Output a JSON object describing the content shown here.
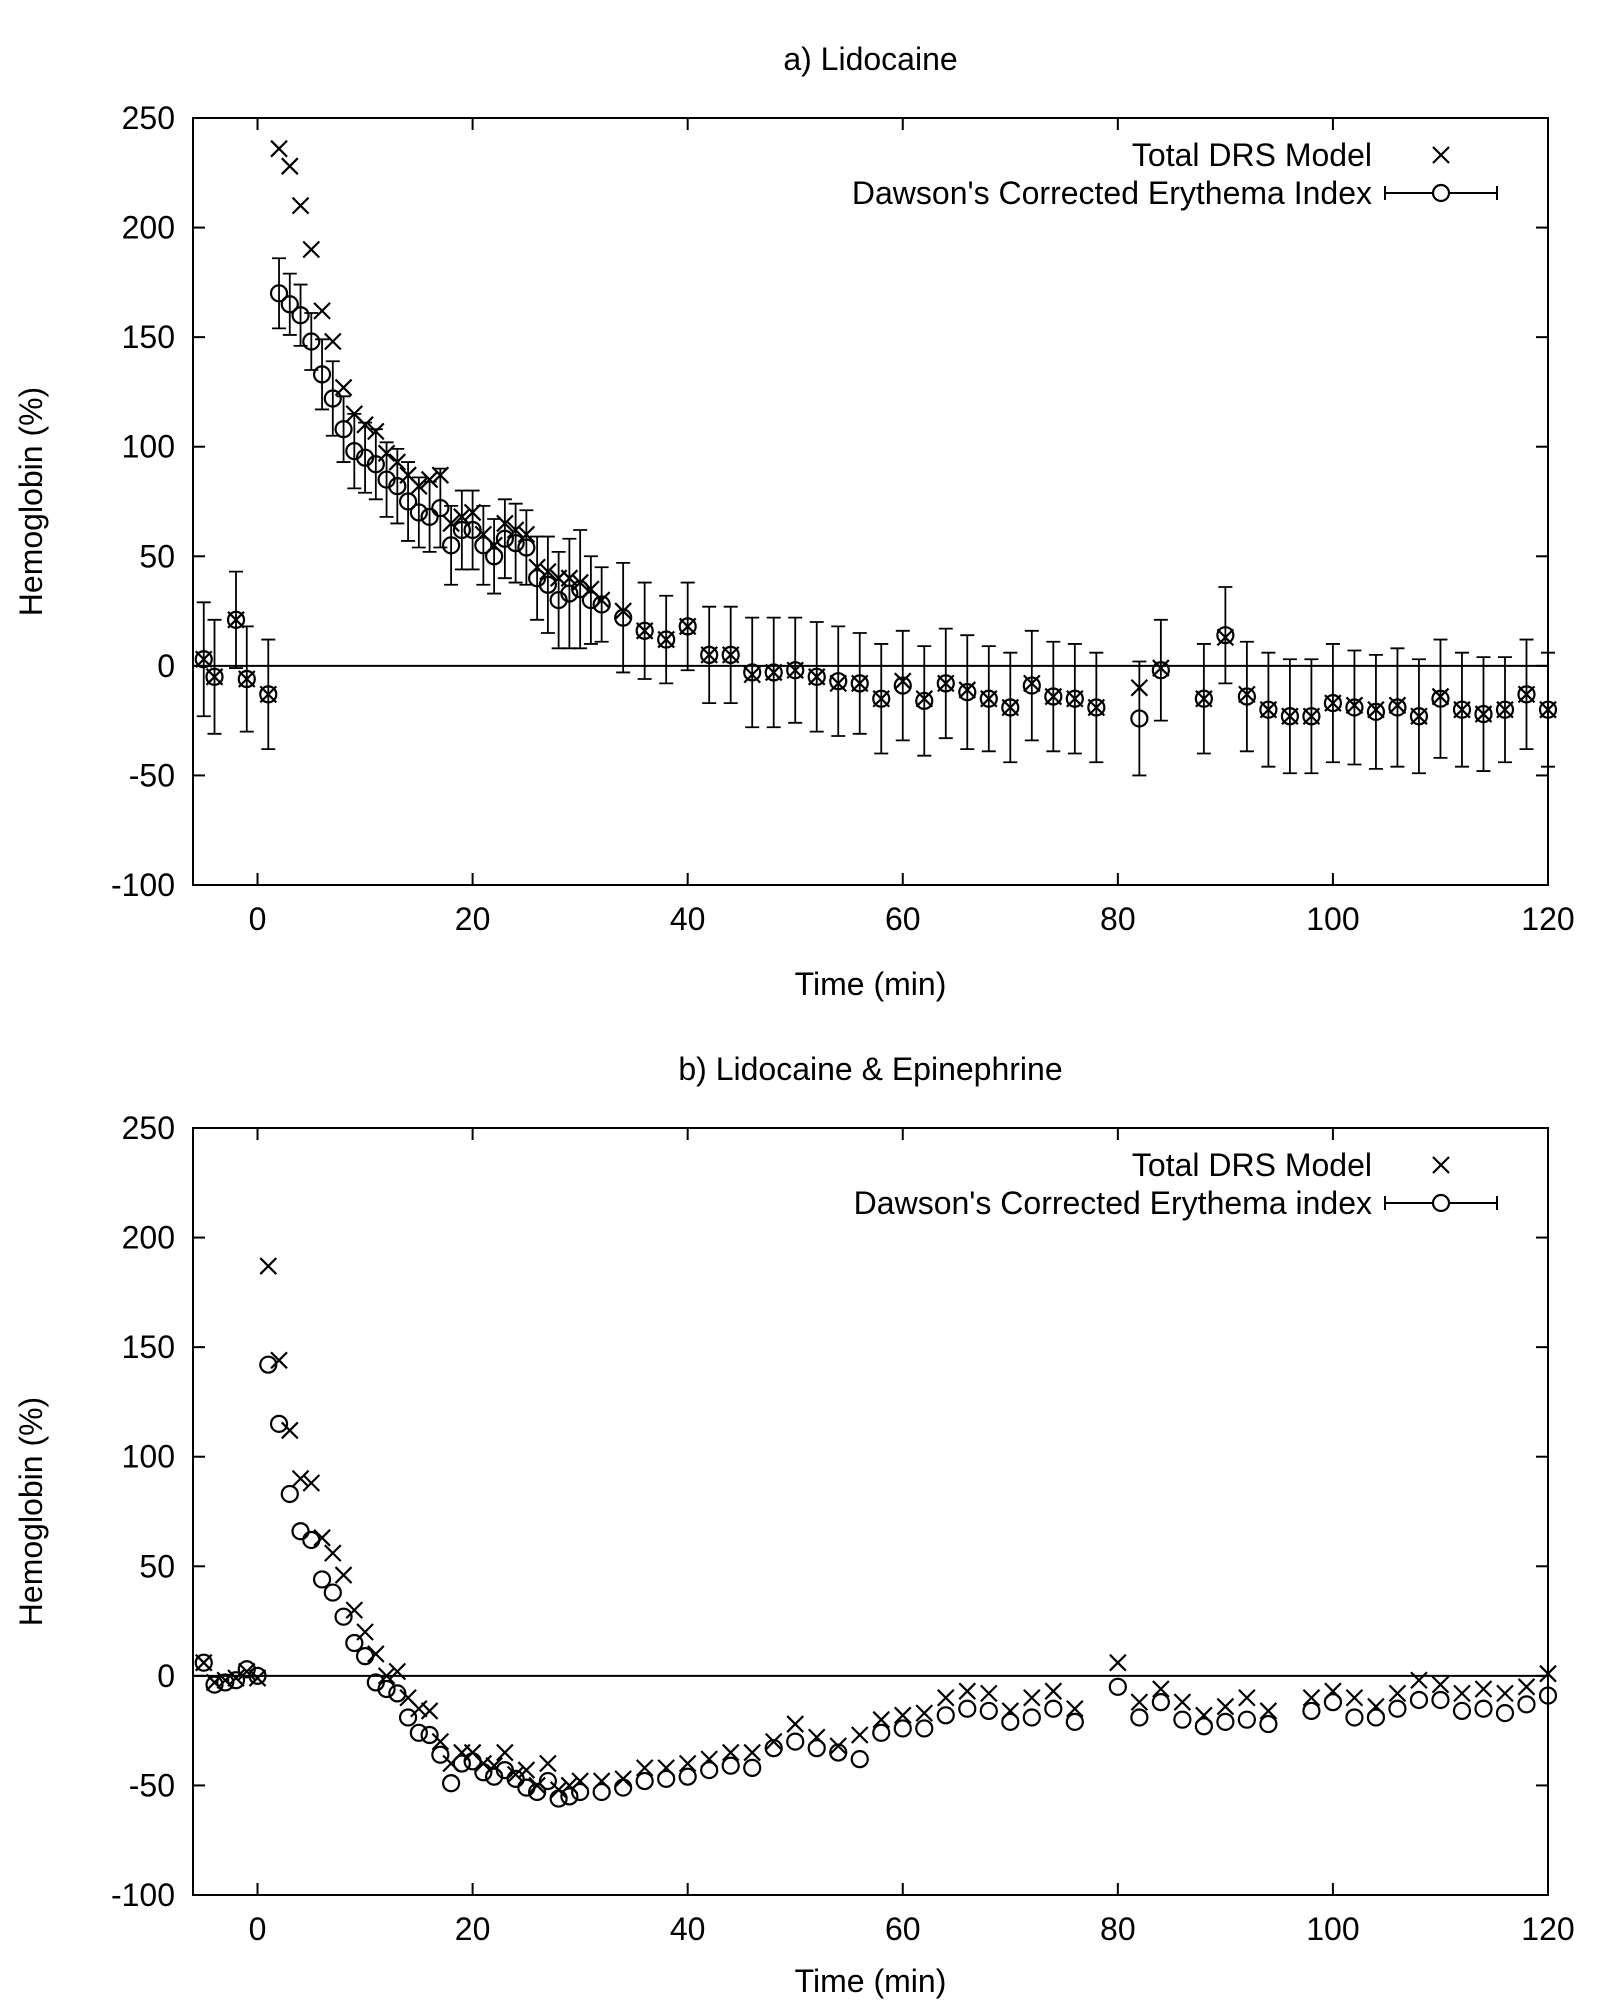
{
  "chart_data": [
    {
      "type": "scatter",
      "title": "a) Lidocaine",
      "xlabel": "Time (min)",
      "ylabel": "Hemoglobin (%)",
      "xlim": [
        -6,
        120
      ],
      "ylim": [
        -100,
        250
      ],
      "xticks": [
        "0",
        "20",
        "40",
        "60",
        "80",
        "100",
        "120"
      ],
      "yticks": [
        "250",
        "200",
        "150",
        "100",
        "50",
        "0",
        "-50",
        "-100"
      ],
      "zero_line": true,
      "legend_placement": "top-right",
      "series": [
        {
          "name": "Total DRS Model",
          "marker": "cross",
          "x": [
            -5,
            -4,
            -2,
            -1,
            1,
            2,
            3,
            4,
            5,
            6,
            7,
            8,
            9,
            10,
            11,
            12,
            13,
            14,
            15,
            16,
            17,
            18,
            19,
            20,
            21,
            22,
            23,
            24,
            25,
            26,
            27,
            28,
            29,
            30,
            31,
            32,
            34,
            36,
            38,
            40,
            42,
            44,
            46,
            48,
            50,
            52,
            54,
            56,
            58,
            60,
            62,
            64,
            66,
            68,
            70,
            72,
            74,
            76,
            78,
            82,
            84,
            88,
            90,
            92,
            94,
            96,
            98,
            100,
            102,
            104,
            106,
            108,
            110,
            112,
            114,
            116,
            118,
            120
          ],
          "y": [
            3,
            -5,
            21,
            -6,
            -13,
            236,
            228,
            210,
            190,
            162,
            148,
            127,
            115,
            110,
            107,
            97,
            93,
            87,
            82,
            85,
            87,
            65,
            68,
            70,
            60,
            55,
            65,
            62,
            60,
            45,
            43,
            40,
            40,
            38,
            35,
            30,
            25,
            16,
            12,
            18,
            5,
            5,
            -4,
            -3,
            -2,
            -5,
            -8,
            -8,
            -15,
            -7,
            -15,
            -8,
            -11,
            -15,
            -19,
            -8,
            -14,
            -15,
            -19,
            -10,
            -1,
            -15,
            13,
            -13,
            -20,
            -23,
            -23,
            -17,
            -18,
            -20,
            -18,
            -23,
            -14,
            -20,
            -22,
            -20,
            -13,
            -20
          ]
        },
        {
          "name": "Dawson's Corrected Erythema Index",
          "marker": "circle",
          "x": [
            -5,
            -4,
            -2,
            -1,
            1,
            2,
            3,
            4,
            5,
            6,
            7,
            8,
            9,
            10,
            11,
            12,
            13,
            14,
            15,
            16,
            17,
            18,
            19,
            20,
            21,
            22,
            23,
            24,
            25,
            26,
            27,
            28,
            29,
            30,
            31,
            32,
            34,
            36,
            38,
            40,
            42,
            44,
            46,
            48,
            50,
            52,
            54,
            56,
            58,
            60,
            62,
            64,
            66,
            68,
            70,
            72,
            74,
            76,
            78,
            82,
            84,
            88,
            90,
            92,
            94,
            96,
            98,
            100,
            102,
            104,
            106,
            108,
            110,
            112,
            114,
            116,
            118,
            120
          ],
          "y": [
            3,
            -5,
            21,
            -6,
            -13,
            170,
            165,
            160,
            148,
            133,
            122,
            108,
            98,
            95,
            92,
            85,
            82,
            75,
            70,
            68,
            72,
            55,
            62,
            62,
            55,
            50,
            58,
            56,
            54,
            40,
            37,
            30,
            33,
            35,
            30,
            28,
            22,
            16,
            12,
            18,
            5,
            5,
            -3,
            -3,
            -2,
            -5,
            -7,
            -8,
            -15,
            -9,
            -16,
            -8,
            -12,
            -15,
            -19,
            -9,
            -14,
            -15,
            -19,
            -24,
            -2,
            -15,
            14,
            -14,
            -20,
            -23,
            -23,
            -17,
            -19,
            -21,
            -19,
            -23,
            -15,
            -20,
            -22,
            -20,
            -13,
            -20
          ],
          "error": [
            26,
            26,
            22,
            24,
            25,
            16,
            14,
            14,
            13,
            16,
            17,
            15,
            17,
            16,
            16,
            17,
            17,
            18,
            16,
            16,
            18,
            18,
            18,
            18,
            18,
            17,
            18,
            18,
            17,
            19,
            22,
            22,
            25,
            27,
            20,
            17,
            25,
            22,
            20,
            20,
            22,
            22,
            25,
            25,
            24,
            25,
            25,
            23,
            25,
            25,
            25,
            25,
            26,
            24,
            25,
            25,
            25,
            25,
            25,
            26,
            23,
            25,
            22,
            25,
            26,
            26,
            26,
            27,
            26,
            26,
            27,
            26,
            27,
            26,
            26,
            24,
            25,
            26
          ]
        }
      ]
    },
    {
      "type": "scatter",
      "title": "b) Lidocaine & Epinephrine",
      "xlabel": "Time (min)",
      "ylabel": "Hemoglobin (%)",
      "xlim": [
        -6,
        120
      ],
      "ylim": [
        -100,
        250
      ],
      "xticks": [
        "0",
        "20",
        "40",
        "60",
        "80",
        "100",
        "120"
      ],
      "yticks": [
        "250",
        "200",
        "150",
        "100",
        "50",
        "0",
        "-50",
        "-100"
      ],
      "zero_line": true,
      "legend_placement": "top-right",
      "series": [
        {
          "name": "Total DRS Model",
          "marker": "cross",
          "x": [
            -5,
            -4,
            -3,
            -2,
            -1,
            0,
            1,
            2,
            3,
            4,
            5,
            6,
            7,
            8,
            9,
            10,
            11,
            12,
            13,
            14,
            15,
            16,
            17,
            18,
            19,
            20,
            21,
            22,
            23,
            24,
            25,
            26,
            27,
            28,
            29,
            30,
            32,
            34,
            36,
            38,
            40,
            42,
            44,
            46,
            48,
            50,
            52,
            54,
            56,
            58,
            60,
            62,
            64,
            66,
            68,
            70,
            72,
            74,
            76,
            80,
            82,
            84,
            86,
            88,
            90,
            92,
            94,
            98,
            100,
            102,
            104,
            106,
            108,
            110,
            112,
            114,
            116,
            118,
            120
          ],
          "y": [
            6,
            -3,
            -2,
            -1,
            2,
            -1,
            187,
            144,
            112,
            90,
            88,
            63,
            56,
            46,
            30,
            20,
            10,
            0,
            2,
            -10,
            -15,
            -16,
            -30,
            -40,
            -35,
            -35,
            -40,
            -41,
            -35,
            -45,
            -43,
            -50,
            -40,
            -52,
            -50,
            -48,
            -48,
            -47,
            -42,
            -42,
            -40,
            -38,
            -35,
            -35,
            -30,
            -22,
            -28,
            -32,
            -27,
            -20,
            -18,
            -17,
            -10,
            -7,
            -8,
            -16,
            -10,
            -7,
            -15,
            6,
            -12,
            -6,
            -12,
            -18,
            -14,
            -10,
            -16,
            -10,
            -7,
            -10,
            -14,
            -8,
            -2,
            -4,
            -8,
            -6,
            -8,
            -5,
            1
          ]
        },
        {
          "name": "Dawson's Corrected Erythema index",
          "marker": "circle",
          "x": [
            -5,
            -4,
            -3,
            -2,
            -1,
            0,
            1,
            2,
            3,
            4,
            5,
            6,
            7,
            8,
            9,
            10,
            11,
            12,
            13,
            14,
            15,
            16,
            17,
            18,
            19,
            20,
            21,
            22,
            23,
            24,
            25,
            26,
            27,
            28,
            29,
            30,
            32,
            34,
            36,
            38,
            40,
            42,
            44,
            46,
            48,
            50,
            52,
            54,
            56,
            58,
            60,
            62,
            64,
            66,
            68,
            70,
            72,
            74,
            76,
            80,
            82,
            84,
            86,
            88,
            90,
            92,
            94,
            98,
            100,
            102,
            104,
            106,
            108,
            110,
            112,
            114,
            116,
            118,
            120
          ],
          "y": [
            6,
            -4,
            -3,
            -2,
            3,
            0,
            142,
            115,
            83,
            66,
            62,
            44,
            38,
            27,
            15,
            9,
            -3,
            -6,
            -8,
            -19,
            -26,
            -27,
            -36,
            -49,
            -40,
            -39,
            -44,
            -46,
            -43,
            -47,
            -51,
            -53,
            -48,
            -56,
            -55,
            -53,
            -53,
            -51,
            -48,
            -47,
            -46,
            -43,
            -41,
            -42,
            -33,
            -30,
            -33,
            -35,
            -38,
            -26,
            -24,
            -24,
            -18,
            -15,
            -16,
            -21,
            -19,
            -15,
            -21,
            -5,
            -19,
            -12,
            -20,
            -23,
            -21,
            -20,
            -22,
            -16,
            -12,
            -19,
            -19,
            -15,
            -11,
            -11,
            -16,
            -15,
            -17,
            -13,
            -9
          ]
        }
      ]
    }
  ]
}
